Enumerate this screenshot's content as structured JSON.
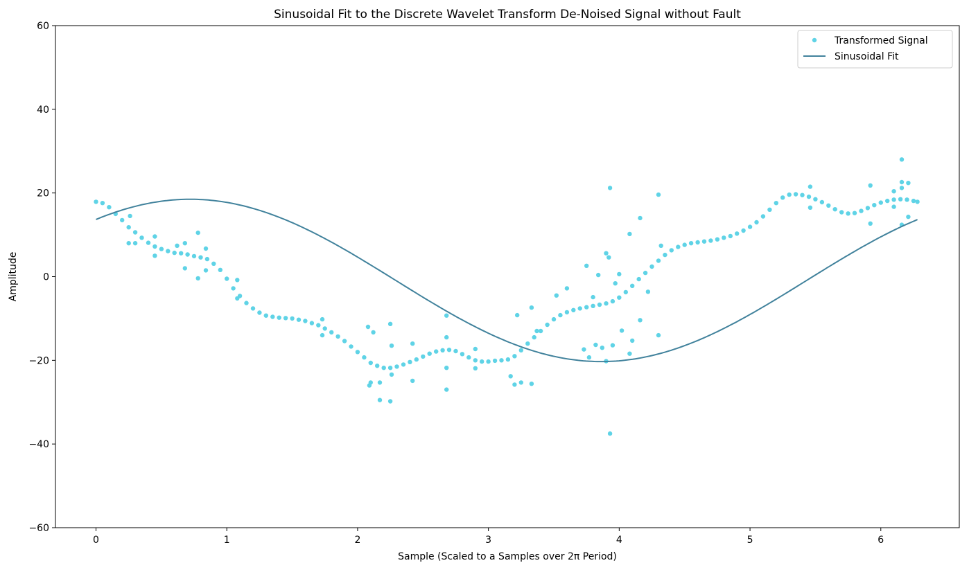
{
  "chart_data": {
    "type": "scatter",
    "title": "Sinusoidal Fit to the Discrete Wavelet Transform De-Noised Signal without Fault",
    "xlabel": "Sample (Scaled to a Samples over 2π Period)",
    "ylabel": "Amplitude",
    "xlim": [
      -0.31,
      6.6
    ],
    "ylim": [
      -60,
      60
    ],
    "xticks": [
      0,
      1,
      2,
      3,
      4,
      5,
      6
    ],
    "yticks": [
      -60,
      -40,
      -20,
      0,
      20,
      40,
      60
    ],
    "xtick_labels": [
      "0",
      "1",
      "2",
      "3",
      "4",
      "5",
      "6"
    ],
    "ytick_labels": [
      "−60",
      "−40",
      "−20",
      "0",
      "20",
      "40",
      "60"
    ],
    "grid": false,
    "legend_position": "top-right",
    "series": [
      {
        "name": "Transformed Signal",
        "kind": "scatter",
        "color": "#5fd3e6",
        "points": [
          [
            0.0,
            17.9
          ],
          [
            0.05,
            17.6
          ],
          [
            0.1,
            16.6
          ],
          [
            0.15,
            15.0
          ],
          [
            0.2,
            13.5
          ],
          [
            0.25,
            11.8
          ],
          [
            0.3,
            10.6
          ],
          [
            0.35,
            9.3
          ],
          [
            0.4,
            8.1
          ],
          [
            0.45,
            7.2
          ],
          [
            0.5,
            6.6
          ],
          [
            0.55,
            6.1
          ],
          [
            0.6,
            5.7
          ],
          [
            0.65,
            5.6
          ],
          [
            0.7,
            5.3
          ],
          [
            0.75,
            4.9
          ],
          [
            0.8,
            4.6
          ],
          [
            0.85,
            4.2
          ],
          [
            0.9,
            3.1
          ],
          [
            0.95,
            1.6
          ],
          [
            1.0,
            -0.5
          ],
          [
            1.05,
            -2.8
          ],
          [
            1.1,
            -4.6
          ],
          [
            1.15,
            -6.3
          ],
          [
            1.2,
            -7.6
          ],
          [
            1.25,
            -8.6
          ],
          [
            1.3,
            -9.3
          ],
          [
            1.35,
            -9.6
          ],
          [
            1.4,
            -9.8
          ],
          [
            1.45,
            -9.9
          ],
          [
            1.5,
            -10.0
          ],
          [
            1.55,
            -10.3
          ],
          [
            1.6,
            -10.6
          ],
          [
            1.65,
            -11.1
          ],
          [
            1.7,
            -11.6
          ],
          [
            1.75,
            -12.4
          ],
          [
            1.8,
            -13.3
          ],
          [
            1.85,
            -14.3
          ],
          [
            1.9,
            -15.4
          ],
          [
            1.95,
            -16.7
          ],
          [
            2.0,
            -18.0
          ],
          [
            2.05,
            -19.3
          ],
          [
            2.1,
            -20.6
          ],
          [
            2.15,
            -21.3
          ],
          [
            2.2,
            -21.8
          ],
          [
            2.25,
            -21.8
          ],
          [
            2.3,
            -21.5
          ],
          [
            2.35,
            -21.0
          ],
          [
            2.4,
            -20.4
          ],
          [
            2.45,
            -19.8
          ],
          [
            2.5,
            -19.1
          ],
          [
            2.55,
            -18.4
          ],
          [
            2.6,
            -17.9
          ],
          [
            2.65,
            -17.6
          ],
          [
            2.7,
            -17.5
          ],
          [
            2.75,
            -17.8
          ],
          [
            2.8,
            -18.5
          ],
          [
            2.85,
            -19.3
          ],
          [
            2.9,
            -20.0
          ],
          [
            2.95,
            -20.3
          ],
          [
            3.0,
            -20.3
          ],
          [
            3.05,
            -20.1
          ],
          [
            3.1,
            -20.0
          ],
          [
            3.15,
            -19.8
          ],
          [
            3.2,
            -19.0
          ],
          [
            3.25,
            -17.6
          ],
          [
            3.3,
            -16.0
          ],
          [
            3.35,
            -14.5
          ],
          [
            3.4,
            -13.0
          ],
          [
            3.45,
            -11.5
          ],
          [
            3.5,
            -10.2
          ],
          [
            3.55,
            -9.2
          ],
          [
            3.6,
            -8.5
          ],
          [
            3.65,
            -8.0
          ],
          [
            3.7,
            -7.6
          ],
          [
            3.75,
            -7.3
          ],
          [
            3.8,
            -7.0
          ],
          [
            3.85,
            -6.7
          ],
          [
            3.9,
            -6.4
          ],
          [
            3.95,
            -5.9
          ],
          [
            4.0,
            -5.0
          ],
          [
            4.05,
            -3.7
          ],
          [
            4.1,
            -2.2
          ],
          [
            4.15,
            -0.6
          ],
          [
            4.2,
            0.9
          ],
          [
            4.25,
            2.4
          ],
          [
            4.3,
            3.8
          ],
          [
            4.35,
            5.2
          ],
          [
            4.4,
            6.3
          ],
          [
            4.45,
            7.1
          ],
          [
            4.5,
            7.6
          ],
          [
            4.55,
            8.0
          ],
          [
            4.6,
            8.2
          ],
          [
            4.65,
            8.4
          ],
          [
            4.7,
            8.6
          ],
          [
            4.75,
            8.9
          ],
          [
            4.8,
            9.3
          ],
          [
            4.85,
            9.7
          ],
          [
            4.9,
            10.3
          ],
          [
            4.95,
            11.0
          ],
          [
            5.0,
            11.9
          ],
          [
            5.05,
            13.0
          ],
          [
            5.1,
            14.4
          ],
          [
            5.15,
            16.0
          ],
          [
            5.2,
            17.6
          ],
          [
            5.25,
            18.9
          ],
          [
            5.3,
            19.6
          ],
          [
            5.35,
            19.7
          ],
          [
            5.4,
            19.5
          ],
          [
            5.45,
            19.1
          ],
          [
            5.5,
            18.5
          ],
          [
            5.55,
            17.8
          ],
          [
            5.6,
            17.0
          ],
          [
            5.65,
            16.1
          ],
          [
            5.7,
            15.4
          ],
          [
            5.75,
            15.1
          ],
          [
            5.8,
            15.2
          ],
          [
            5.85,
            15.7
          ],
          [
            5.9,
            16.4
          ],
          [
            5.95,
            17.1
          ],
          [
            6.0,
            17.7
          ],
          [
            6.05,
            18.1
          ],
          [
            6.1,
            18.4
          ],
          [
            6.15,
            18.5
          ],
          [
            6.2,
            18.4
          ],
          [
            6.25,
            18.1
          ],
          [
            6.28,
            17.9
          ],
          [
            0.26,
            14.5
          ],
          [
            0.25,
            8.0
          ],
          [
            0.3,
            8.0
          ],
          [
            0.45,
            9.6
          ],
          [
            0.45,
            5.0
          ],
          [
            0.62,
            7.4
          ],
          [
            0.68,
            8.0
          ],
          [
            0.68,
            2.0
          ],
          [
            0.78,
            10.5
          ],
          [
            0.78,
            -0.4
          ],
          [
            0.84,
            6.7
          ],
          [
            0.84,
            1.5
          ],
          [
            1.08,
            -0.8
          ],
          [
            1.08,
            -5.2
          ],
          [
            1.73,
            -10.2
          ],
          [
            1.73,
            -14.0
          ],
          [
            2.08,
            -12.0
          ],
          [
            2.09,
            -26.0
          ],
          [
            2.1,
            -25.3
          ],
          [
            2.12,
            -13.3
          ],
          [
            2.17,
            -25.3
          ],
          [
            2.17,
            -29.5
          ],
          [
            2.25,
            -11.3
          ],
          [
            2.25,
            -29.8
          ],
          [
            2.26,
            -16.5
          ],
          [
            2.26,
            -23.4
          ],
          [
            2.42,
            -16.0
          ],
          [
            2.42,
            -24.9
          ],
          [
            2.68,
            -9.3
          ],
          [
            2.68,
            -27.0
          ],
          [
            2.68,
            -14.5
          ],
          [
            2.68,
            -21.8
          ],
          [
            2.9,
            -17.3
          ],
          [
            2.9,
            -21.9
          ],
          [
            3.17,
            -23.8
          ],
          [
            3.2,
            -25.8
          ],
          [
            3.25,
            -25.3
          ],
          [
            3.33,
            -7.4
          ],
          [
            3.33,
            -25.6
          ],
          [
            3.37,
            -13.0
          ],
          [
            3.22,
            -9.2
          ],
          [
            3.52,
            -4.5
          ],
          [
            3.6,
            -2.8
          ],
          [
            3.73,
            -17.4
          ],
          [
            3.75,
            2.6
          ],
          [
            3.77,
            -19.3
          ],
          [
            3.8,
            -4.9
          ],
          [
            3.82,
            -16.3
          ],
          [
            3.84,
            0.4
          ],
          [
            3.87,
            -17.0
          ],
          [
            3.9,
            5.6
          ],
          [
            3.9,
            -20.2
          ],
          [
            3.92,
            4.6
          ],
          [
            3.93,
            -37.5
          ],
          [
            3.93,
            21.2
          ],
          [
            3.95,
            -16.4
          ],
          [
            3.97,
            -1.6
          ],
          [
            4.0,
            0.6
          ],
          [
            4.02,
            -12.9
          ],
          [
            4.08,
            10.2
          ],
          [
            4.08,
            -18.4
          ],
          [
            4.1,
            -15.3
          ],
          [
            4.16,
            14.0
          ],
          [
            4.16,
            -10.4
          ],
          [
            4.22,
            -3.6
          ],
          [
            4.3,
            19.6
          ],
          [
            4.3,
            -14.0
          ],
          [
            4.32,
            7.4
          ],
          [
            5.46,
            21.5
          ],
          [
            5.46,
            16.5
          ],
          [
            5.92,
            21.8
          ],
          [
            5.92,
            12.7
          ],
          [
            6.1,
            20.4
          ],
          [
            6.1,
            16.7
          ],
          [
            6.16,
            28.0
          ],
          [
            6.16,
            22.6
          ],
          [
            6.16,
            21.2
          ],
          [
            6.16,
            12.4
          ],
          [
            6.21,
            22.4
          ],
          [
            6.21,
            14.3
          ]
        ]
      },
      {
        "name": "Sinusoidal Fit",
        "kind": "line",
        "color": "#41829c",
        "model": {
          "amplitude": 19.4,
          "angular_frequency": 1.0,
          "phase": 0.85,
          "offset": -0.9
        },
        "x_range": [
          0,
          6.28
        ]
      }
    ]
  }
}
